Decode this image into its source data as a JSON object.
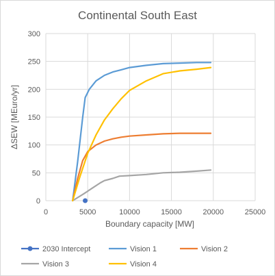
{
  "chart_data": {
    "type": "line",
    "title": "Continental South East",
    "xlabel": "Boundary capacity [MW]",
    "ylabel": "ΔSEW  [MEuro/yr]",
    "xlim": [
      0,
      25000
    ],
    "ylim": [
      0,
      300
    ],
    "x_ticks": [
      "0",
      "5000",
      "10000",
      "15000",
      "20000",
      "25000"
    ],
    "y_ticks": [
      "0",
      "50",
      "100",
      "150",
      "200",
      "250",
      "300"
    ],
    "grid": "horizontal",
    "legend_position": "bottom",
    "series": [
      {
        "name": "2030 Intercept",
        "kind": "marker",
        "color": "#4472c4",
        "points": [
          [
            4700,
            0
          ]
        ]
      },
      {
        "name": "Vision 1",
        "kind": "line",
        "color": "#5b9bd5",
        "points": [
          [
            3200,
            0
          ],
          [
            3800,
            70
          ],
          [
            4400,
            150
          ],
          [
            4700,
            185
          ],
          [
            5200,
            200
          ],
          [
            6000,
            215
          ],
          [
            7000,
            225
          ],
          [
            8000,
            231
          ],
          [
            9000,
            235
          ],
          [
            10000,
            239
          ],
          [
            12000,
            243
          ],
          [
            14000,
            246
          ],
          [
            16000,
            247
          ],
          [
            18000,
            248
          ],
          [
            19700,
            248
          ]
        ]
      },
      {
        "name": "Vision 2",
        "kind": "line",
        "color": "#ed7d31",
        "points": [
          [
            3200,
            0
          ],
          [
            3800,
            40
          ],
          [
            4400,
            72
          ],
          [
            5000,
            88
          ],
          [
            6000,
            100
          ],
          [
            7000,
            107
          ],
          [
            8000,
            111
          ],
          [
            9000,
            114
          ],
          [
            10000,
            116
          ],
          [
            12000,
            118
          ],
          [
            14000,
            120
          ],
          [
            16000,
            121
          ],
          [
            18000,
            121
          ],
          [
            19700,
            121
          ]
        ]
      },
      {
        "name": "Vision 3",
        "kind": "line",
        "color": "#a5a5a5",
        "points": [
          [
            3200,
            0
          ],
          [
            4500,
            12
          ],
          [
            5500,
            22
          ],
          [
            6500,
            32
          ],
          [
            7000,
            36
          ],
          [
            8000,
            40
          ],
          [
            8800,
            44
          ],
          [
            10000,
            45
          ],
          [
            12000,
            47
          ],
          [
            14000,
            50
          ],
          [
            16000,
            51
          ],
          [
            18000,
            53
          ],
          [
            19700,
            55
          ]
        ]
      },
      {
        "name": "Vision 4",
        "kind": "line",
        "color": "#ffc000",
        "points": [
          [
            3200,
            0
          ],
          [
            4000,
            40
          ],
          [
            5000,
            85
          ],
          [
            6000,
            118
          ],
          [
            7000,
            145
          ],
          [
            8000,
            165
          ],
          [
            9000,
            183
          ],
          [
            10000,
            198
          ],
          [
            12000,
            215
          ],
          [
            14000,
            228
          ],
          [
            16000,
            233
          ],
          [
            18000,
            236
          ],
          [
            19700,
            239
          ]
        ]
      }
    ]
  }
}
